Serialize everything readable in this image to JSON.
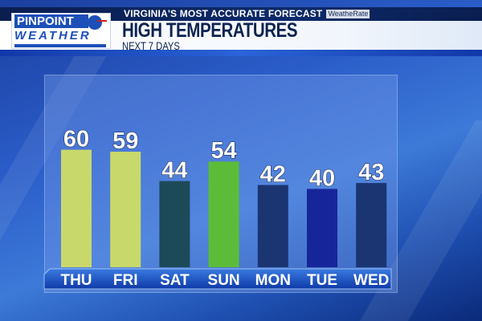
{
  "header": {
    "tagline": "VIRGINIA'S MOST ACCURATE FORECAST",
    "badge": "WeatheRate",
    "logo_line1": "PINPOINT",
    "logo_line2": "WEATHER",
    "title": "HIGH TEMPERATURES",
    "subtitle": "NEXT 7 DAYS"
  },
  "chart_data": {
    "type": "bar",
    "title": "HIGH TEMPERATURES",
    "subtitle": "NEXT 7 DAYS",
    "categories": [
      "THU",
      "FRI",
      "SAT",
      "SUN",
      "MON",
      "TUE",
      "WED"
    ],
    "values": [
      60,
      59,
      44,
      54,
      42,
      40,
      43
    ],
    "colors": [
      "#c9d86a",
      "#c9d86a",
      "#1d4a58",
      "#5cbc3a",
      "#1a3572",
      "#16269a",
      "#1a3572"
    ],
    "ylim": [
      0,
      60
    ],
    "grid": false,
    "data_labels": true
  }
}
